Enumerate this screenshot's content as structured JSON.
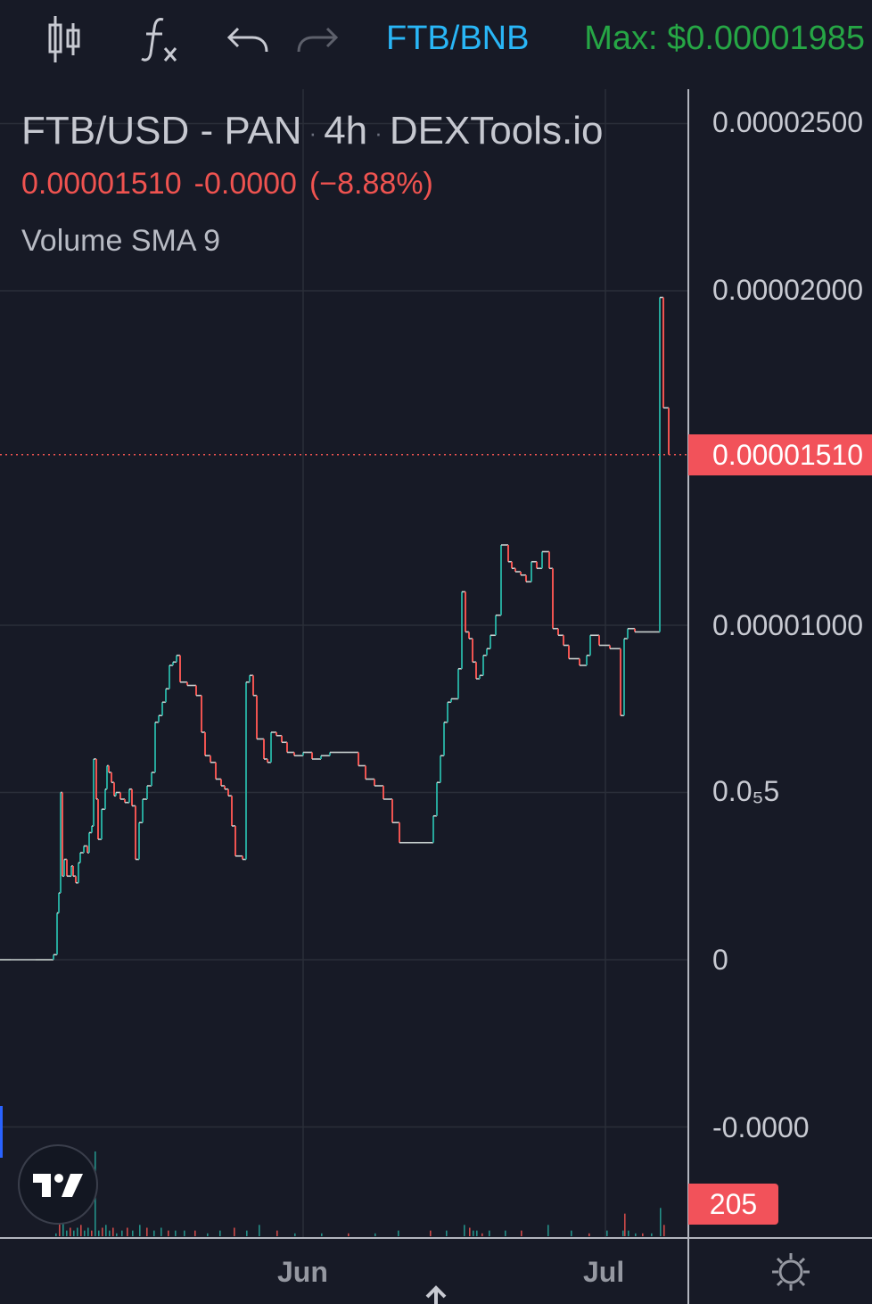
{
  "toolbar": {
    "pair": "FTB/BNB",
    "max_price": "Max: $0.00001985",
    "icons": [
      "candlestick-icon",
      "function-icon",
      "undo-icon",
      "redo-icon"
    ]
  },
  "legend": {
    "symbol": "FTB/USD - PAN",
    "interval": "4h",
    "source": "DEXTools.io",
    "separator": "·",
    "last_price": "0.00001510",
    "change": "-0.0000",
    "change_pct": "(−8.88%)",
    "indicator": "Volume SMA 9"
  },
  "colors": {
    "background": "#171a26",
    "up": "#26a69a",
    "down": "#ef5350",
    "grid": "#2a2e39",
    "badge": "#f2525a",
    "pair": "#29b6f6",
    "max": "#26a645"
  },
  "price_axis_labels": [
    "0.00002500",
    "0.00002000",
    "0.00001000",
    "0.0₅5",
    "0",
    "-0.0000"
  ],
  "current_price_label": "0.00001510",
  "volume_label": "205",
  "time_axis_labels": [
    "Jun",
    "Jul"
  ],
  "chart_data": {
    "type": "line",
    "title": "FTB/USD - PAN · 4h · DEXTools.io",
    "ylim": [
      -5e-06,
      2.5e-05
    ],
    "current_price": 1.51e-05,
    "series": [
      {
        "x": [
          0,
          12,
          40,
          45,
          48,
          52,
          56,
          60,
          64,
          66,
          68,
          70,
          72,
          75,
          80,
          82,
          85,
          88,
          90,
          94,
          98,
          100,
          103,
          105,
          108,
          110,
          114,
          118,
          120,
          122,
          125,
          128,
          130,
          135,
          140,
          145,
          148,
          152,
          156,
          160,
          165,
          170,
          174,
          178,
          182,
          186,
          190,
          194,
          198,
          202,
          206,
          210,
          214,
          220,
          226,
          230,
          236,
          242,
          248,
          252,
          256,
          260,
          264,
          268,
          272,
          276,
          280,
          284,
          288,
          292,
          296,
          300,
          304,
          310,
          316,
          322,
          330,
          340,
          350,
          360,
          370,
          380,
          390,
          396,
          402,
          410,
          420,
          430,
          440,
          448,
          455,
          462,
          470,
          476,
          482,
          486,
          490,
          494,
          498,
          502,
          506,
          510,
          514,
          518,
          522,
          526,
          530,
          534,
          538,
          542,
          546,
          550,
          556,
          562,
          566,
          570,
          574,
          578,
          584,
          590,
          596,
          602,
          608,
          612,
          616,
          620,
          626,
          632,
          638,
          644,
          650,
          654,
          658,
          662,
          666,
          672,
          678,
          684,
          690,
          696,
          700,
          704,
          708,
          712,
          716,
          720,
          728,
          736,
          740,
          744,
          750
        ],
        "y": [
          0.0,
          0.0,
          0.0,
          0.0,
          0.0,
          0.0,
          0.0,
          1.5e-07,
          1.4e-06,
          2e-06,
          5e-06,
          2.5e-06,
          3e-06,
          2.5e-06,
          2.8e-06,
          2.5e-06,
          2.3e-06,
          2.9e-06,
          3.2e-06,
          3.4e-06,
          3.2e-06,
          3.8e-06,
          4e-06,
          6e-06,
          4.8e-06,
          3.6e-06,
          4.5e-06,
          5.1e-06,
          5.8e-06,
          5.6e-06,
          5.3e-06,
          4.9e-06,
          5e-06,
          4.8e-06,
          4.7e-06,
          5.1e-06,
          4.6e-06,
          3e-06,
          4.1e-06,
          4.8e-06,
          5.2e-06,
          5.6e-06,
          7.1e-06,
          7.3e-06,
          7.7e-06,
          8.1e-06,
          8.8e-06,
          8.9e-06,
          9.1e-06,
          8.3e-06,
          8.3e-06,
          8.2e-06,
          8.2e-06,
          7.9e-06,
          6.8e-06,
          6.1e-06,
          5.9e-06,
          5.4e-06,
          5.2e-06,
          5.1e-06,
          4.9e-06,
          4e-06,
          3.1e-06,
          3.1e-06,
          3e-06,
          8.3e-06,
          8.5e-06,
          7.9e-06,
          6.6e-06,
          6.6e-06,
          6e-06,
          5.9e-06,
          6.8e-06,
          6.7e-06,
          6.5e-06,
          6.2e-06,
          6.1e-06,
          6.2e-06,
          6e-06,
          6.1e-06,
          6.2e-06,
          6.2e-06,
          6.2e-06,
          6.2e-06,
          5.8e-06,
          5.4e-06,
          5.2e-06,
          4.8e-06,
          4.1e-06,
          3.5e-06,
          3.5e-06,
          3.5e-06,
          3.5e-06,
          3.5e-06,
          3.5e-06,
          4.3e-06,
          5.3e-06,
          6.1e-06,
          7.1e-06,
          7.7e-06,
          7.8e-06,
          7.8e-06,
          8.7e-06,
          1.1e-05,
          9.8e-06,
          9.6e-06,
          8.9e-06,
          8.4e-06,
          8.5e-06,
          9.1e-06,
          9.3e-06,
          9.7e-06,
          1.03e-05,
          1.24e-05,
          1.24e-05,
          1.19e-05,
          1.17e-05,
          1.16e-05,
          1.15e-05,
          1.13e-05,
          1.19e-05,
          1.17e-05,
          1.22e-05,
          1.22e-05,
          1.17e-05,
          9.9e-06,
          9.7e-06,
          9.4e-06,
          9e-06,
          9e-06,
          8.8e-06,
          8.8e-06,
          9.1e-06,
          9.7e-06,
          9.7e-06,
          9.4e-06,
          9.4e-06,
          9.3e-06,
          9.3e-06,
          7.3e-06,
          9.6e-06,
          9.9e-06,
          9.9e-06,
          9.8e-06,
          9.8e-06,
          9.8e-06,
          9.8e-06,
          9.8e-06,
          1.98e-05,
          1.65e-05,
          1.51e-05
        ]
      }
    ],
    "volume": {
      "x": [
        62,
        66,
        70,
        74,
        78,
        82,
        86,
        90,
        94,
        98,
        102,
        106,
        110,
        114,
        118,
        122,
        126,
        130,
        136,
        142,
        148,
        156,
        164,
        172,
        180,
        188,
        196,
        206,
        218,
        232,
        246,
        262,
        276,
        290,
        310,
        330,
        360,
        390,
        420,
        446,
        482,
        500,
        520,
        526,
        530,
        534,
        540,
        548,
        566,
        584,
        614,
        640,
        660,
        680,
        698,
        700,
        704,
        712,
        720,
        730,
        740,
        744
      ],
      "values": [
        0.1,
        2.7,
        0.5,
        0.2,
        0.3,
        0.2,
        0.3,
        0.4,
        0.2,
        0.3,
        0.2,
        3.0,
        0.2,
        0.3,
        0.4,
        0.2,
        0.3,
        0.1,
        0.2,
        0.3,
        0.2,
        0.4,
        0.3,
        0.2,
        0.3,
        0.2,
        0.2,
        0.2,
        0.2,
        0.1,
        0.2,
        0.3,
        0.2,
        0.4,
        0.2,
        0.1,
        0.1,
        0.1,
        0.1,
        0.2,
        0.2,
        0.2,
        0.4,
        0.3,
        0.2,
        0.2,
        0.1,
        0.2,
        0.2,
        0.2,
        0.4,
        0.2,
        0.1,
        0.2,
        0.2,
        0.8,
        0.2,
        0.1,
        0.1,
        0.1,
        1.0,
        0.4
      ]
    },
    "x_ticks": [
      "Jun",
      "Jul"
    ],
    "grid": true,
    "scale": "linear"
  }
}
